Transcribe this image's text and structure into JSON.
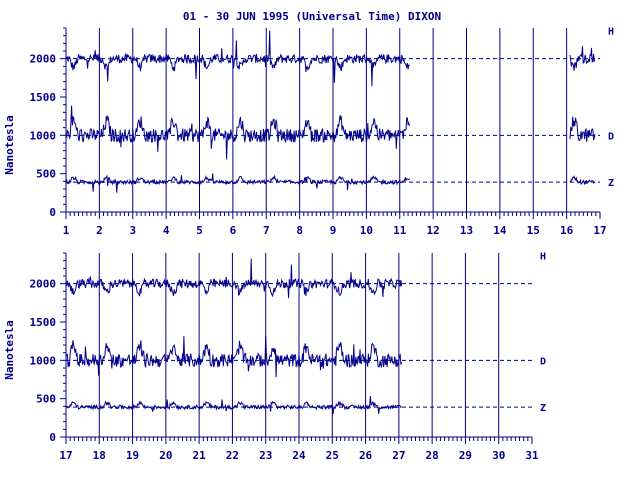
{
  "title": "01 - 30 JUN 1995 (Universal Time) DIXON",
  "ylabel": "Nanotesla",
  "colors": {
    "trace": "#00008b",
    "axis": "#00008b",
    "grid": "#00008b"
  },
  "chart_data": [
    {
      "type": "line",
      "panel": "top",
      "x_ticks": [
        "1",
        "2",
        "3",
        "4",
        "5",
        "6",
        "7",
        "8",
        "9",
        "10",
        "11",
        "12",
        "13",
        "14",
        "15",
        "16",
        "17"
      ],
      "xlim": [
        1,
        17
      ],
      "y_ticks": [
        "0",
        "500",
        "1000",
        "1500",
        "2000"
      ],
      "ylim": [
        0,
        2400
      ],
      "series_labels": [
        "H",
        "D",
        "Z"
      ],
      "baselines": [
        2000,
        1000,
        390
      ],
      "data_segments": [
        [
          1,
          11.3
        ],
        [
          16.1,
          16.85
        ]
      ]
    },
    {
      "type": "line",
      "panel": "bottom",
      "x_ticks": [
        "17",
        "18",
        "19",
        "20",
        "21",
        "22",
        "23",
        "24",
        "25",
        "26",
        "27",
        "28",
        "29",
        "30",
        "31"
      ],
      "xlim": [
        17,
        31
      ],
      "y_ticks": [
        "0",
        "500",
        "1000",
        "1500",
        "2000"
      ],
      "ylim": [
        0,
        2400
      ],
      "series_labels": [
        "H",
        "D",
        "Z"
      ],
      "baselines": [
        2000,
        1000,
        390
      ],
      "data_segments": [
        [
          17,
          27.1
        ]
      ]
    }
  ]
}
